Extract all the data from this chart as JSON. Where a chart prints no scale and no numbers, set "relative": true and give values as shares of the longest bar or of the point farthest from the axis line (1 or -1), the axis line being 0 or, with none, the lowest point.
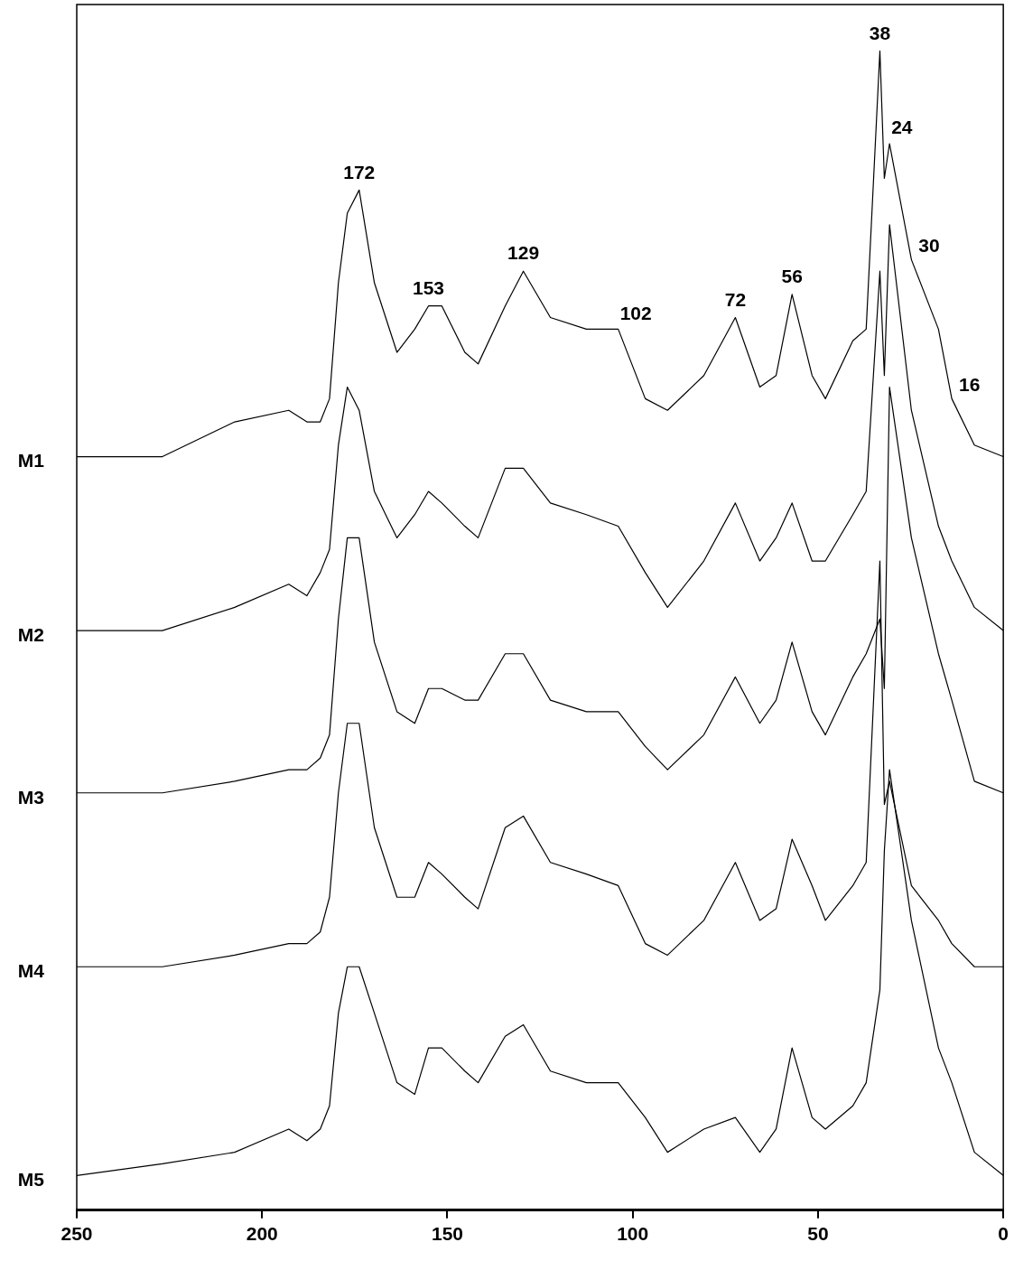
{
  "chart_data": {
    "type": "line",
    "relative": true,
    "grid": false,
    "legend": false,
    "marker": "none",
    "line_style": "solid",
    "x": [
      250,
      226.9,
      207.4,
      192.8,
      187.9,
      184.3,
      181.8,
      179.4,
      177.0,
      173.8,
      169.7,
      163.6,
      158.8,
      155.1,
      151.5,
      145.3,
      141.7,
      134.4,
      129.5,
      122.2,
      112.5,
      103.9,
      96.6,
      90.6,
      80.8,
      72.3,
      65.7,
      61.3,
      57.0,
      51.6,
      48.0,
      40.6,
      37.0,
      33.3,
      32.1,
      30.7,
      24.8,
      17.5,
      13.9,
      7.8,
      0
    ],
    "xlim": [
      250,
      0
    ],
    "xticks": [
      250,
      200,
      150,
      100,
      50,
      0
    ],
    "series": [
      {
        "name": "M1",
        "color": "#000000",
        "values": [
          0.65,
          0.65,
          0.68,
          0.69,
          0.68,
          0.68,
          0.7,
          0.8,
          0.86,
          0.88,
          0.8,
          0.74,
          0.76,
          0.78,
          0.78,
          0.74,
          0.73,
          0.78,
          0.81,
          0.77,
          0.76,
          0.76,
          0.7,
          0.69,
          0.72,
          0.77,
          0.71,
          0.72,
          0.79,
          0.72,
          0.7,
          0.75,
          0.76,
          1.0,
          0.89,
          0.92,
          0.82,
          0.76,
          0.7,
          0.66,
          0.65
        ]
      },
      {
        "name": "M2",
        "color": "#000000",
        "values": [
          0.5,
          0.5,
          0.52,
          0.54,
          0.53,
          0.55,
          0.57,
          0.66,
          0.71,
          0.69,
          0.62,
          0.58,
          0.6,
          0.62,
          0.61,
          0.59,
          0.58,
          0.64,
          0.64,
          0.61,
          0.6,
          0.59,
          0.55,
          0.52,
          0.56,
          0.61,
          0.56,
          0.58,
          0.61,
          0.56,
          0.56,
          0.6,
          0.62,
          0.81,
          0.72,
          0.85,
          0.69,
          0.59,
          0.56,
          0.52,
          0.5
        ]
      },
      {
        "name": "M3",
        "color": "#000000",
        "values": [
          0.36,
          0.36,
          0.37,
          0.38,
          0.38,
          0.39,
          0.41,
          0.51,
          0.58,
          0.58,
          0.49,
          0.43,
          0.42,
          0.45,
          0.45,
          0.44,
          0.44,
          0.48,
          0.48,
          0.44,
          0.43,
          0.43,
          0.4,
          0.38,
          0.41,
          0.46,
          0.42,
          0.44,
          0.49,
          0.43,
          0.41,
          0.46,
          0.48,
          0.51,
          0.45,
          0.71,
          0.58,
          0.48,
          0.44,
          0.37,
          0.36
        ]
      },
      {
        "name": "M4",
        "color": "#000000",
        "values": [
          0.21,
          0.21,
          0.22,
          0.23,
          0.23,
          0.24,
          0.27,
          0.36,
          0.42,
          0.42,
          0.33,
          0.27,
          0.27,
          0.3,
          0.29,
          0.27,
          0.26,
          0.33,
          0.34,
          0.3,
          0.29,
          0.28,
          0.23,
          0.22,
          0.25,
          0.3,
          0.25,
          0.26,
          0.32,
          0.28,
          0.25,
          0.28,
          0.3,
          0.56,
          0.35,
          0.37,
          0.28,
          0.25,
          0.23,
          0.21,
          0.21
        ]
      },
      {
        "name": "M5",
        "color": "#000000",
        "values": [
          0.03,
          0.04,
          0.05,
          0.07,
          0.06,
          0.07,
          0.09,
          0.17,
          0.21,
          0.21,
          0.17,
          0.11,
          0.1,
          0.14,
          0.14,
          0.12,
          0.11,
          0.15,
          0.16,
          0.12,
          0.11,
          0.11,
          0.08,
          0.05,
          0.07,
          0.08,
          0.05,
          0.07,
          0.14,
          0.08,
          0.07,
          0.09,
          0.11,
          0.19,
          0.31,
          0.38,
          0.25,
          0.14,
          0.11,
          0.05,
          0.03
        ]
      }
    ],
    "annotations": [
      {
        "text": "172",
        "x": 173.8,
        "y": 0.88
      },
      {
        "text": "153",
        "x": 155.1,
        "y": 0.78
      },
      {
        "text": "129",
        "x": 129.5,
        "y": 0.81
      },
      {
        "text": "102",
        "x": 103.9,
        "y": 0.76
      },
      {
        "text": "72",
        "x": 72.3,
        "y": 0.77
      },
      {
        "text": "56",
        "x": 57.0,
        "y": 0.79
      },
      {
        "text": "38",
        "x": 33.3,
        "y": 1.0
      },
      {
        "text": "24",
        "x": 30.7,
        "y": 0.92
      },
      {
        "text": "30",
        "x": 24.8,
        "y": 0.82
      },
      {
        "text": "16",
        "x": 13.9,
        "y": 0.7
      }
    ]
  }
}
